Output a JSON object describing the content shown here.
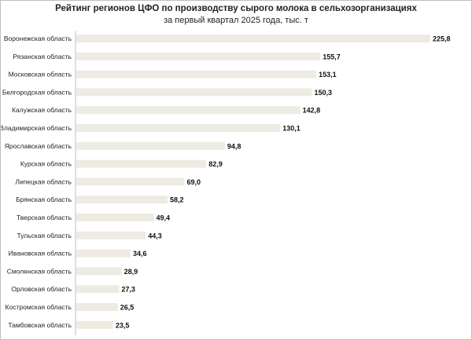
{
  "chart_data": {
    "type": "bar",
    "orientation": "horizontal",
    "title": "Рейтинг регионов ЦФО по производству сырого молока в сельхозорганизациях",
    "subtitle": "за первый квартал 2025 года, тыс. т",
    "categories": [
      "Воронежская область",
      "Рязанская область",
      "Московская область",
      "Белгородская область",
      "Калужская область",
      "Владимирская область",
      "Ярославская область",
      "Курская область",
      "Липецкая область",
      "Брянская область",
      "Тверская область",
      "Тульская область",
      "Ивановская область",
      "Смоленская область",
      "Орловская область",
      "Костромская область",
      "Тамбовская область"
    ],
    "values": [
      225.8,
      155.7,
      153.1,
      150.3,
      142.8,
      130.1,
      94.8,
      82.9,
      69.0,
      58.2,
      49.4,
      44.3,
      34.6,
      28.9,
      27.3,
      26.5,
      23.5
    ],
    "value_labels": [
      "225,8",
      "155,7",
      "153,1",
      "150,3",
      "142,8",
      "130,1",
      "94,8",
      "82,9",
      "69,0",
      "58,2",
      "49,4",
      "44,3",
      "34,6",
      "28,9",
      "27,3",
      "26,5",
      "23,5"
    ],
    "xlim": [
      0,
      225.8
    ],
    "grid": false,
    "legend": "none",
    "colors": {
      "bar": "#eeebe2",
      "axis": "#bfbfbf"
    }
  }
}
